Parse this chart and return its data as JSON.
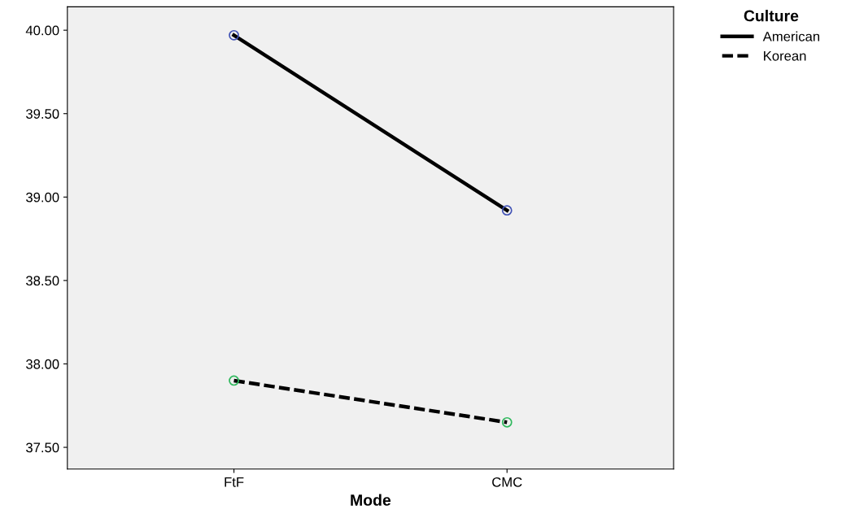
{
  "chart_data": {
    "type": "line",
    "xlabel": "Mode",
    "legend_title": "Culture",
    "categories": [
      "FtF",
      "CMC"
    ],
    "series": [
      {
        "name": "American",
        "color": "#000000",
        "colors": [
          "#3f51b5",
          "#3f51b5"
        ],
        "line_style": "solid",
        "values": [
          39.97,
          38.92
        ]
      },
      {
        "name": "Korean",
        "color": "#000000",
        "colors": [
          "#2eb85c",
          "#2eb85c"
        ],
        "line_style": "dashed",
        "values": [
          37.9,
          37.65
        ]
      }
    ],
    "ylim": [
      37.37,
      40.14
    ],
    "yticks": [
      {
        "value": 37.5,
        "label": "37.50"
      },
      {
        "value": 38,
        "label": "38.00"
      },
      {
        "value": 38.5,
        "label": "38.50"
      },
      {
        "value": 39,
        "label": "39.00"
      },
      {
        "value": 39.5,
        "label": "39.50"
      },
      {
        "value": 40,
        "label": "40.00"
      }
    ],
    "marker": "circle",
    "grid": false,
    "legend": "top right"
  }
}
